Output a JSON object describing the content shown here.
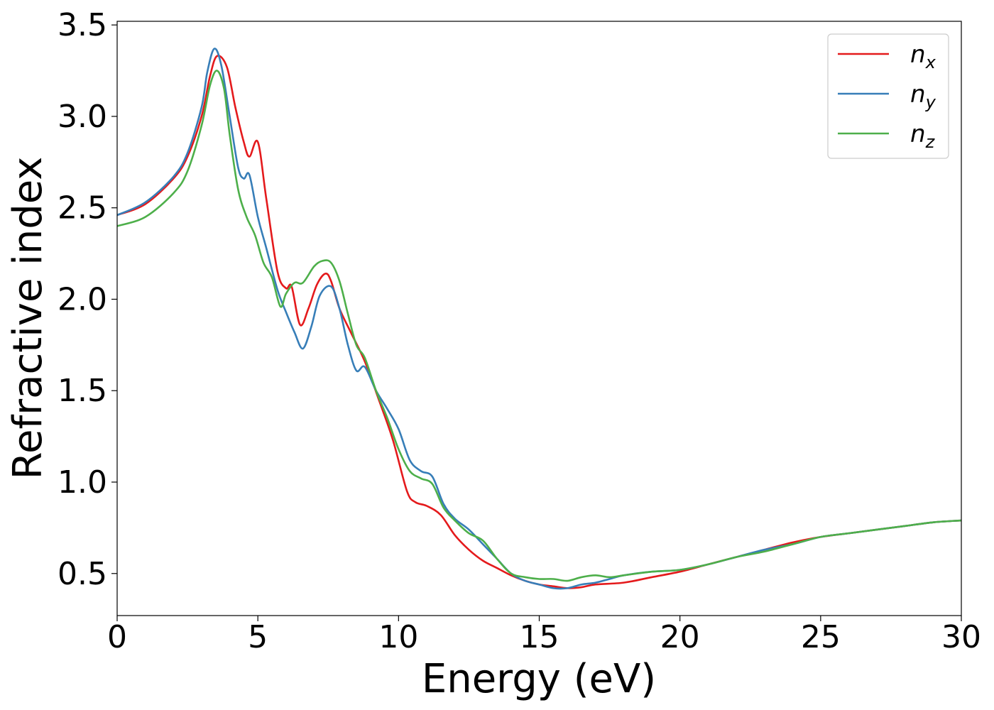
{
  "chart_data": {
    "type": "line",
    "title": "",
    "xlabel": "Energy (eV)",
    "ylabel": "Refractive index",
    "xlim": [
      0,
      30
    ],
    "ylim": [
      0.27,
      3.52
    ],
    "xticks": [
      0,
      5,
      10,
      15,
      20,
      25,
      30
    ],
    "yticks": [
      0.5,
      1.0,
      1.5,
      2.0,
      2.5,
      3.0,
      3.5
    ],
    "xtick_labels": [
      "0",
      "5",
      "10",
      "15",
      "20",
      "25",
      "30"
    ],
    "ytick_labels": [
      "0.5",
      "1.0",
      "1.5",
      "2.0",
      "2.5",
      "3.0",
      "3.5"
    ],
    "grid": false,
    "legend_position": "top-right",
    "series": [
      {
        "name": "n",
        "subscript": "x",
        "color": "#e41a1c",
        "x": [
          0,
          1,
          2,
          2.5,
          3,
          3.3,
          3.55,
          3.9,
          4.2,
          4.5,
          4.7,
          5.0,
          5.3,
          5.7,
          6.0,
          6.2,
          6.5,
          6.8,
          7.1,
          7.4,
          7.6,
          7.9,
          8.3,
          8.8,
          9.3,
          9.8,
          10.3,
          10.6,
          11.0,
          11.5,
          12.0,
          12.5,
          13.0,
          13.5,
          14.0,
          14.5,
          15.0,
          15.5,
          16.0,
          16.5,
          17.0,
          18.0,
          19.0,
          20.0,
          21.0,
          22.0,
          23.0,
          24.0,
          25.0,
          26.0,
          27.0,
          28.0,
          29.0,
          30.0
        ],
        "y": [
          2.46,
          2.52,
          2.66,
          2.78,
          3.0,
          3.22,
          3.33,
          3.27,
          3.05,
          2.86,
          2.78,
          2.86,
          2.55,
          2.15,
          2.06,
          2.07,
          1.86,
          1.95,
          2.08,
          2.14,
          2.1,
          1.95,
          1.82,
          1.66,
          1.45,
          1.23,
          0.95,
          0.89,
          0.87,
          0.82,
          0.71,
          0.63,
          0.57,
          0.53,
          0.49,
          0.46,
          0.44,
          0.43,
          0.42,
          0.425,
          0.44,
          0.45,
          0.48,
          0.51,
          0.55,
          0.59,
          0.63,
          0.67,
          0.7,
          0.72,
          0.74,
          0.76,
          0.78,
          0.79
        ]
      },
      {
        "name": "n",
        "subscript": "y",
        "color": "#377eb8",
        "x": [
          0,
          1,
          2,
          2.5,
          3,
          3.2,
          3.45,
          3.7,
          4.0,
          4.3,
          4.5,
          4.7,
          5.0,
          5.3,
          5.7,
          6.0,
          6.3,
          6.6,
          6.9,
          7.2,
          7.6,
          7.9,
          8.2,
          8.5,
          8.8,
          9.2,
          9.6,
          10.0,
          10.4,
          10.8,
          11.2,
          11.6,
          12.0,
          12.5,
          13.0,
          13.5,
          14.0,
          14.5,
          15.0,
          15.5,
          16.0,
          16.5,
          17.0,
          17.5,
          18.0,
          19.0,
          20.0,
          21.0,
          22.0,
          23.0,
          24.0,
          25.0,
          26.0,
          27.0,
          28.0,
          29.0,
          30.0
        ],
        "y": [
          2.46,
          2.53,
          2.67,
          2.8,
          3.05,
          3.24,
          3.37,
          3.28,
          3.0,
          2.72,
          2.66,
          2.68,
          2.45,
          2.28,
          2.05,
          1.93,
          1.82,
          1.73,
          1.85,
          2.02,
          2.07,
          1.95,
          1.75,
          1.61,
          1.63,
          1.5,
          1.4,
          1.29,
          1.12,
          1.06,
          1.03,
          0.88,
          0.8,
          0.74,
          0.66,
          0.58,
          0.5,
          0.46,
          0.44,
          0.42,
          0.42,
          0.44,
          0.45,
          0.47,
          0.49,
          0.51,
          0.52,
          0.55,
          0.59,
          0.63,
          0.66,
          0.7,
          0.72,
          0.74,
          0.76,
          0.78,
          0.79
        ]
      },
      {
        "name": "n",
        "subscript": "z",
        "color": "#4daf4a",
        "x": [
          0,
          1,
          2,
          2.5,
          3,
          3.3,
          3.55,
          3.8,
          4.0,
          4.3,
          4.6,
          4.9,
          5.2,
          5.5,
          5.8,
          6.0,
          6.3,
          6.6,
          7.0,
          7.3,
          7.6,
          7.9,
          8.2,
          8.5,
          8.8,
          9.2,
          9.6,
          10.0,
          10.4,
          10.8,
          11.2,
          11.6,
          12.0,
          12.5,
          13.0,
          13.5,
          14.0,
          14.5,
          15.0,
          15.5,
          16.0,
          16.5,
          17.0,
          17.5,
          18.0,
          19.0,
          20.0,
          21.0,
          22.0,
          23.0,
          24.0,
          25.0,
          26.0,
          27.0,
          28.0,
          29.0,
          30.0
        ],
        "y": [
          2.4,
          2.45,
          2.58,
          2.7,
          2.95,
          3.17,
          3.25,
          3.15,
          2.9,
          2.6,
          2.45,
          2.35,
          2.2,
          2.12,
          1.96,
          2.03,
          2.09,
          2.09,
          2.18,
          2.21,
          2.2,
          2.1,
          1.92,
          1.75,
          1.68,
          1.5,
          1.35,
          1.18,
          1.06,
          1.02,
          0.99,
          0.86,
          0.79,
          0.72,
          0.68,
          0.58,
          0.5,
          0.48,
          0.47,
          0.47,
          0.46,
          0.48,
          0.49,
          0.48,
          0.49,
          0.51,
          0.52,
          0.55,
          0.59,
          0.62,
          0.66,
          0.7,
          0.72,
          0.74,
          0.76,
          0.78,
          0.79
        ]
      }
    ]
  }
}
